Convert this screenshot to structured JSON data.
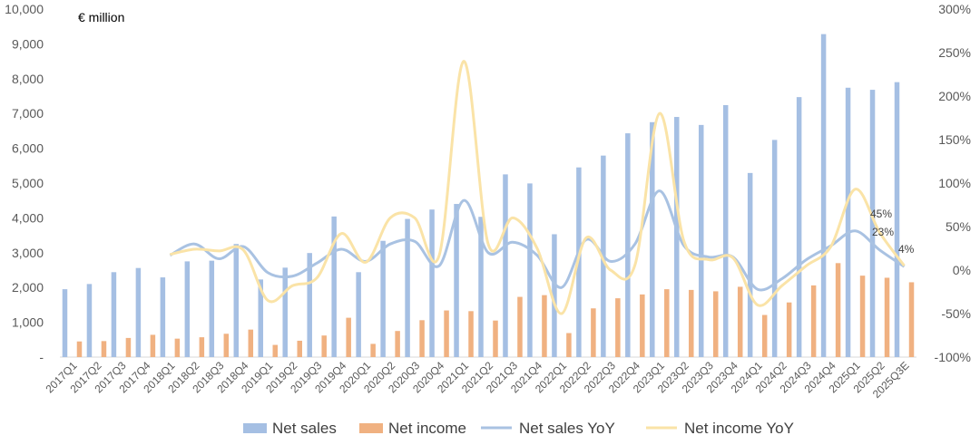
{
  "chart_data": {
    "type": "bar",
    "unit_label": "€ million",
    "categories": [
      "2017Q1",
      "2017Q2",
      "2017Q3",
      "2017Q4",
      "2018Q1",
      "2018Q2",
      "2018Q3",
      "2018Q4",
      "2019Q1",
      "2019Q2",
      "2019Q3",
      "2019Q4",
      "2020Q1",
      "2020Q2",
      "2020Q3",
      "2020Q4",
      "2021Q1",
      "2021Q2",
      "2021Q3",
      "2021Q4",
      "2022Q1",
      "2022Q2",
      "2022Q3",
      "2022Q4",
      "2023Q1",
      "2023Q2",
      "2023Q3",
      "2023Q4",
      "2024Q1",
      "2024Q2",
      "2024Q3",
      "2024Q4",
      "2025Q1",
      "2025Q2",
      "2025Q3E"
    ],
    "y_left": {
      "min": 0,
      "max": 10000,
      "ticks": [
        "-",
        "1,000",
        "2,000",
        "3,000",
        "4,000",
        "5,000",
        "6,000",
        "7,000",
        "8,000",
        "9,000",
        "10,000"
      ]
    },
    "y_right": {
      "min": -100,
      "max": 300,
      "ticks": [
        "-100%",
        "-50%",
        "0%",
        "50%",
        "100%",
        "150%",
        "200%",
        "250%",
        "300%"
      ]
    },
    "series": [
      {
        "name": "Net sales",
        "axis": "left",
        "kind": "bar",
        "color": "#a5bfe3",
        "values": [
          1950,
          2100,
          2440,
          2560,
          2290,
          2750,
          2770,
          3250,
          2230,
          2570,
          2990,
          4040,
          2440,
          3340,
          3970,
          4240,
          4400,
          4030,
          5250,
          4990,
          3530,
          5450,
          5790,
          6430,
          6750,
          6900,
          6670,
          7240,
          5290,
          6240,
          7470,
          9280,
          7740,
          7680,
          7900
        ]
      },
      {
        "name": "Net income",
        "axis": "left",
        "kind": "bar",
        "color": "#f0b181",
        "values": [
          450,
          460,
          550,
          640,
          530,
          570,
          670,
          790,
          350,
          470,
          620,
          1130,
          380,
          750,
          1060,
          1340,
          1320,
          1050,
          1730,
          1780,
          690,
          1400,
          1690,
          1800,
          1950,
          1930,
          1890,
          2020,
          1210,
          1570,
          2060,
          2700,
          2340,
          2280,
          2150
        ]
      },
      {
        "name": "Net sales YoY",
        "axis": "right",
        "kind": "line",
        "color": "#a9c2e2",
        "values": [
          null,
          null,
          null,
          null,
          17,
          30,
          13,
          27,
          -3,
          -7,
          8,
          24,
          10,
          30,
          33,
          5,
          80,
          20,
          32,
          17,
          -20,
          35,
          10,
          30,
          91,
          28,
          15,
          15,
          -22,
          -10,
          12,
          28,
          45,
          23,
          4
        ]
      },
      {
        "name": "Net income YoY",
        "axis": "right",
        "kind": "line",
        "color": "#fae3a7",
        "values": [
          null,
          null,
          null,
          null,
          18,
          24,
          22,
          23,
          -35,
          -18,
          -9,
          42,
          9,
          60,
          60,
          17,
          240,
          30,
          60,
          25,
          -50,
          37,
          0,
          6,
          180,
          33,
          12,
          14,
          -40,
          -18,
          5,
          27,
          93,
          43,
          5
        ]
      }
    ],
    "annotations": [
      "45%",
      "23%",
      "4%"
    ],
    "legend_position": "bottom",
    "grid": false
  }
}
